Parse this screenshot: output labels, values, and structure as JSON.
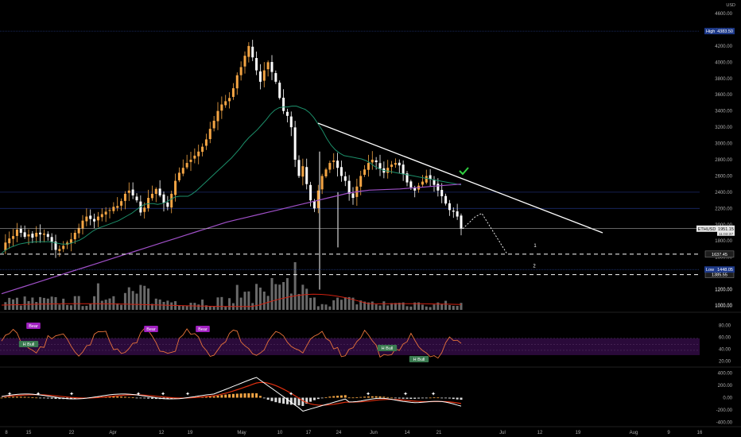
{
  "chart_data": {
    "type": "candlestick",
    "symbol": "ETHUSD",
    "currency": "USD",
    "y_ticks": [
      1000,
      1200,
      1400,
      1600,
      1800,
      2000,
      2200,
      2400,
      2600,
      2800,
      3000,
      3200,
      3400,
      3600,
      3800,
      4000,
      4200,
      4400,
      4600
    ],
    "ylim": [
      950,
      4650
    ],
    "x_ticks": [
      "8",
      "15",
      "22",
      "Apr",
      "12",
      "19",
      "May",
      "10",
      "17",
      "24",
      "Jun",
      "14",
      "21",
      "Jul",
      "12",
      "19",
      "Aug",
      "9",
      "16"
    ],
    "last_price_label": "ETHUSD",
    "last_price": "1951.15",
    "countdown": "11:03:37",
    "high": {
      "label": "High",
      "value": "4383.50",
      "level": 4383.5
    },
    "low": {
      "label": "Low",
      "value": "1448.05",
      "level": 1448.05
    },
    "levels": [
      {
        "value": "1637.45",
        "level": 1637.45,
        "marker": "1"
      },
      {
        "value": "1385.55",
        "level": 1385.55,
        "marker": "2"
      }
    ],
    "price_series": [
      1700,
      1780,
      1830,
      1860,
      1940,
      1900,
      1850,
      1880,
      1840,
      1900,
      1880,
      1890,
      1850,
      1790,
      1690,
      1700,
      1740,
      1780,
      1820,
      1900,
      1960,
      2050,
      2100,
      2070,
      2040,
      2100,
      2130,
      2160,
      2180,
      2220,
      2230,
      2290,
      2380,
      2420,
      2360,
      2300,
      2150,
      2210,
      2330,
      2380,
      2440,
      2360,
      2270,
      2220,
      2380,
      2540,
      2640,
      2700,
      2760,
      2800,
      2850,
      2900,
      2960,
      3050,
      3180,
      3280,
      3400,
      3480,
      3520,
      3560,
      3680,
      3840,
      3940,
      4080,
      4200,
      4060,
      3900,
      3760,
      3900,
      4000,
      3880,
      3760,
      3560,
      3400,
      3340,
      3200,
      2800,
      2600,
      2720,
      2500,
      2300,
      2200,
      2420,
      2600,
      2680,
      2760,
      2790,
      2700,
      2600,
      2540,
      2380,
      2330,
      2470,
      2600,
      2680,
      2760,
      2800,
      2770,
      2690,
      2640,
      2700,
      2740,
      2760,
      2730,
      2620,
      2520,
      2460,
      2420,
      2480,
      2530,
      2600,
      2560,
      2490,
      2420,
      2350,
      2260,
      2180,
      2160,
      2100,
      1951
    ],
    "ema_fast": [
      1650,
      1690,
      1720,
      1740,
      1760,
      1770,
      1780,
      1785,
      1790,
      1790,
      1790,
      1790,
      1780,
      1770,
      1760,
      1760,
      1770,
      1790,
      1810,
      1840,
      1880,
      1920,
      1950,
      1970,
      1990,
      2010,
      2030,
      2050,
      2080,
      2110,
      2140,
      2180,
      2220,
      2250,
      2260,
      2260,
      2250,
      2260,
      2280,
      2310,
      2340,
      2350,
      2350,
      2350,
      2380,
      2420,
      2470,
      2520,
      2570,
      2620,
      2670,
      2720,
      2770,
      2820,
      2880,
      2940,
      3010,
      3070,
      3120,
      3170,
      3230,
      3290,
      3360,
      3410,
      3440,
      3450,
      3450,
      3460,
      3460,
      3440,
      3420,
      3380,
      3320,
      3240,
      3160,
      3060,
      2980,
      2920,
      2880,
      2850,
      2840,
      2830,
      2820,
      2810,
      2790,
      2760,
      2720,
      2690,
      2670,
      2660,
      2650,
      2640,
      2630,
      2620,
      2610,
      2600,
      2590,
      2580,
      2570,
      2560,
      2550,
      2540,
      2530,
      2520,
      2510,
      2500,
      2490
    ],
    "ema_slow": [
      1150,
      1190,
      1230,
      1270,
      1310,
      1350,
      1390,
      1430,
      1470,
      1510,
      1550,
      1590,
      1630,
      1670,
      1710,
      1750,
      1790,
      1830,
      1870,
      1910,
      1950,
      1990,
      2030,
      2060,
      2090,
      2120,
      2150,
      2180,
      2210,
      2240,
      2270,
      2300,
      2330,
      2360,
      2390,
      2410,
      2425,
      2430,
      2435,
      2440,
      2450,
      2460,
      2470,
      2480,
      2490,
      2500
    ],
    "trendline": {
      "from": 3250,
      "to": 1900
    },
    "projection": [
      1951,
      2100,
      2140,
      1637
    ],
    "rsi": {
      "ticks": [
        20,
        40,
        60,
        80
      ],
      "ylim": [
        10,
        95
      ],
      "band": [
        30,
        70
      ],
      "signals": [
        {
          "text": "Bear",
          "type": "bear"
        },
        {
          "text": "H Bull",
          "type": "bull"
        },
        {
          "text": "Bear",
          "type": "bear"
        },
        {
          "text": "Bear",
          "type": "bear"
        },
        {
          "text": "H Bull",
          "type": "bull"
        },
        {
          "text": "H Bull",
          "type": "bull"
        }
      ]
    },
    "macd": {
      "ticks": [
        -400,
        -200,
        0,
        200,
        400
      ],
      "tick_labels": [
        "-400.00",
        "-200.00",
        "0.00",
        "200.00",
        "400.00"
      ],
      "ylim": [
        -460,
        460
      ]
    },
    "volume": {
      "ticks": [
        1000,
        1200
      ],
      "tick_labels": [
        "1000.00",
        "1200.00"
      ]
    }
  },
  "colors": {
    "up": "#f4a544",
    "down": "#ffffff",
    "ema_fast": "#1c8f6a",
    "ema_slow": "#a050c8",
    "trendline": "#ffffff",
    "check": "#30d040",
    "rsi": "#e8733a",
    "bear_badge": "#a020c0",
    "bull_badge": "#3a7a50",
    "macd_line": "#ffffff",
    "signal_line": "#e03010",
    "hist_up": "#f4a544",
    "hist_down": "#dcdcdc"
  }
}
